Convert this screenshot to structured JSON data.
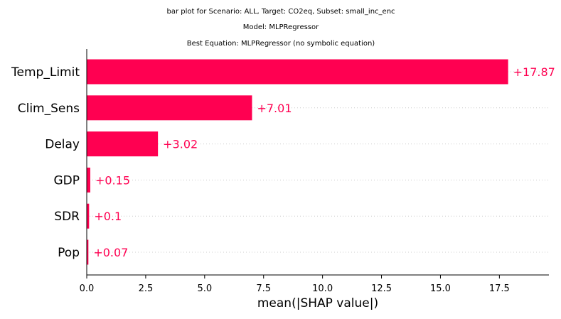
{
  "chart_data": {
    "type": "bar",
    "orientation": "horizontal",
    "title_lines": [
      "bar plot for Scenario: ALL, Target: CO2eq, Subset: small_inc_enc",
      "Model: MLPRegressor",
      "Best Equation: MLPRegressor (no symbolic equation)"
    ],
    "categories": [
      "Temp_Limit",
      "Clim_Sens",
      "Delay",
      "GDP",
      "SDR",
      "Pop"
    ],
    "values": [
      17.87,
      7.01,
      3.02,
      0.15,
      0.1,
      0.07
    ],
    "value_labels": [
      "+17.87",
      "+7.01",
      "+3.02",
      "+0.15",
      "+0.1",
      "+0.07"
    ],
    "xlabel": "mean(|SHAP value|)",
    "ylabel": "",
    "xlim": [
      0,
      19.6
    ],
    "xticks": [
      0,
      2.5,
      5,
      7.5,
      10,
      12.5,
      15,
      17.5
    ],
    "xtick_labels": [
      "0.0",
      "2.5",
      "5.0",
      "7.5",
      "10.0",
      "12.5",
      "15.0",
      "17.5"
    ],
    "grid": "dotted horizontal guide lines behind each bar",
    "colors": {
      "bar": "#ff0051",
      "label": "#ff0051",
      "text": "#000000",
      "axis": "#000000",
      "grid": "#cccccc"
    }
  }
}
